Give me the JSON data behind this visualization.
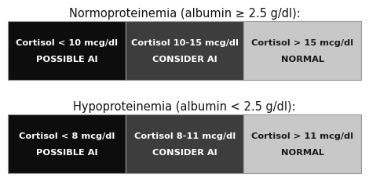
{
  "title1": "Normoproteinemia (albumin ≥ 2.5 g/dl):",
  "title2": "Hypoproteinemia (albumin < 2.5 g/dl):",
  "row1": [
    {
      "label": "Cortisol < 10 mcg/dl\nPOSSIBLE AI",
      "color": "#0d0d0d",
      "text_color": "#ffffff",
      "weight": 1.0
    },
    {
      "label": "Cortisol 10-15 mcg/dl\nCONSIDER AI",
      "color": "#3d3d3d",
      "text_color": "#ffffff",
      "weight": 1.0
    },
    {
      "label": "Cortisol > 15 mcg/dl\nNORMAL",
      "color": "#c8c8c8",
      "text_color": "#1a1a1a",
      "weight": 1.0
    }
  ],
  "row2": [
    {
      "label": "Cortisol < 8 mcg/dl\nPOSSIBLE AI",
      "color": "#0d0d0d",
      "text_color": "#ffffff",
      "weight": 1.0
    },
    {
      "label": "Cortisol 8-11 mcg/dl\nCONSIDER AI",
      "color": "#3d3d3d",
      "text_color": "#ffffff",
      "weight": 1.0
    },
    {
      "label": "Cortisol > 11 mcg/dl\nNORMAL",
      "color": "#c8c8c8",
      "text_color": "#1a1a1a",
      "weight": 1.0
    }
  ],
  "title_fontsize": 10.5,
  "cell_fontsize": 8.2,
  "background_color": "#ffffff",
  "border_color": "#999999",
  "fig_width": 4.74,
  "fig_height": 2.38
}
